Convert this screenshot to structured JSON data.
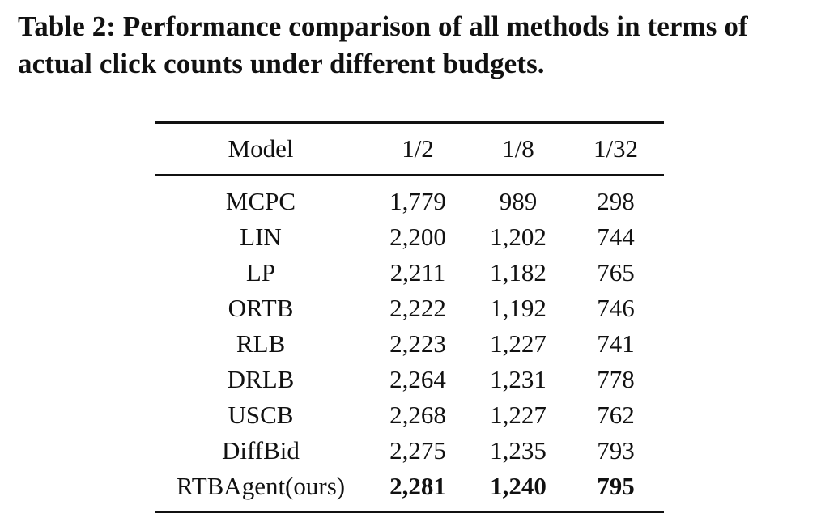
{
  "caption": "Table 2: Performance comparison of all methods in terms of actual click counts under different budgets.",
  "table": {
    "headers": [
      "Model",
      "1/2",
      "1/8",
      "1/32"
    ],
    "rows": [
      {
        "model": "MCPC",
        "b1_2": "1,779",
        "b1_8": "989",
        "b1_32": "298"
      },
      {
        "model": "LIN",
        "b1_2": "2,200",
        "b1_8": "1,202",
        "b1_32": "744"
      },
      {
        "model": "LP",
        "b1_2": "2,211",
        "b1_8": "1,182",
        "b1_32": "765"
      },
      {
        "model": "ORTB",
        "b1_2": "2,222",
        "b1_8": "1,192",
        "b1_32": "746"
      },
      {
        "model": "RLB",
        "b1_2": "2,223",
        "b1_8": "1,227",
        "b1_32": "741"
      },
      {
        "model": "DRLB",
        "b1_2": "2,264",
        "b1_8": "1,231",
        "b1_32": "778"
      },
      {
        "model": "USCB",
        "b1_2": "2,268",
        "b1_8": "1,227",
        "b1_32": "762"
      },
      {
        "model": "DiffBid",
        "b1_2": "2,275",
        "b1_8": "1,235",
        "b1_32": "793"
      },
      {
        "model": "RTBAgent(ours)",
        "b1_2": "2,281",
        "b1_8": "1,240",
        "b1_32": "795"
      }
    ]
  }
}
